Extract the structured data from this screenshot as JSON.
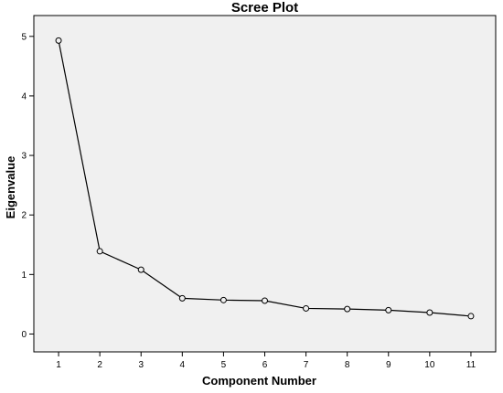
{
  "chart_data": {
    "type": "line",
    "title": "Scree Plot",
    "xlabel": "Component Number",
    "ylabel": "Eigenvalue",
    "x": [
      1,
      2,
      3,
      4,
      5,
      6,
      7,
      8,
      9,
      10,
      11
    ],
    "series": [
      {
        "values": [
          4.93,
          1.39,
          1.08,
          0.6,
          0.57,
          0.56,
          0.43,
          0.42,
          0.4,
          0.36,
          0.3
        ]
      }
    ],
    "xticks": [
      "1",
      "2",
      "3",
      "4",
      "5",
      "6",
      "7",
      "8",
      "9",
      "10",
      "11"
    ],
    "yticks": [
      "0",
      "1",
      "2",
      "3",
      "4",
      "5"
    ],
    "xlim": [
      0.4,
      11.6
    ],
    "ylim": [
      -0.3,
      5.35
    ],
    "grid": false,
    "legend": "none",
    "colors": {
      "plot_background": "#f0f0f0",
      "line": "#000000",
      "marker_fill": "#f0f0f0"
    }
  }
}
